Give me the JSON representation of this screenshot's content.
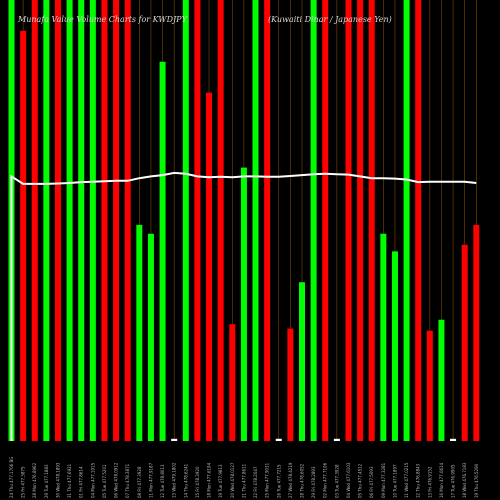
{
  "chart_data": {
    "type": "bar",
    "title": "Munafa Value Volume Charts for KWDJPY",
    "subtitle": "(Kuwaiti Dinar / Japanese Yen)",
    "ylim": [
      0,
      100
    ],
    "colors": {
      "up": "#00ff00",
      "down": "#ff0000",
      "line": "#ffffff",
      "grid": "#7a4a00",
      "background": "#000000",
      "flat": "#ffffff"
    },
    "categories": [
      "24 Thu 477.1706 BG",
      "25 Fri 477.3875",
      "28 Mon 476.8962",
      "29 Tue 477.1883",
      "30 Wed 478.1893",
      "31 Thu 477.6921",
      "01 Fri 477.8614",
      "04 Mon 477.1915",
      "05 Tue 477.5201",
      "06 Wed 478.0912",
      "07 Thu 478.3871",
      "08 Fri 477.3928",
      "11 Mon 477.9187",
      "12 Tue 478.8013",
      "13 Wed 479.1802",
      "14 Thu 478.6241",
      "15 Fri 478.3920",
      "18 Mon 477.6194",
      "19 Tue 477.9813",
      "20 Wed 478.0127",
      "21 Thu 477.8611",
      "22 Fri 478.2047",
      "25 Mon 477.9031",
      "26 Tue 477.7215",
      "27 Wed 478.4219",
      "28 Thu 478.6052",
      "29 Fri 478.2893",
      "02 Mon 477.7106",
      "03 Tue 477.3928",
      "04 Wed 477.6103",
      "05 Thu 477.4512",
      "06 Fri 477.5093",
      "09 Mon 477.3281",
      "10 Tue 477.1897",
      "11 Wed 477.0215",
      "12 Thu 476.8843",
      "13 Fri 476.9152",
      "16 Mon 477.0614",
      "17 Tue 476.9905",
      "18 Wed 476.7183",
      "19 Thu 476.5290"
    ],
    "values": [
      100,
      93,
      100,
      100,
      100,
      100,
      100,
      100,
      100,
      100,
      100,
      49,
      47,
      86,
      0.5,
      100,
      100,
      79,
      100,
      26.5,
      62,
      100,
      100,
      0.5,
      25.5,
      36,
      100,
      100,
      0.5,
      100,
      100,
      100,
      47,
      43,
      100,
      100,
      25,
      27.5,
      0.5,
      44.5,
      49
    ],
    "directions": [
      "up",
      "down",
      "down",
      "up",
      "down",
      "up",
      "up",
      "up",
      "down",
      "down",
      "down",
      "up",
      "up",
      "up",
      "flat",
      "up",
      "down",
      "down",
      "down",
      "down",
      "up",
      "up",
      "down",
      "flat",
      "down",
      "up",
      "up",
      "down",
      "flat",
      "down",
      "down",
      "down",
      "up",
      "up",
      "up",
      "down",
      "down",
      "up",
      "flat",
      "down",
      "down"
    ],
    "price_line": [
      60,
      58.3,
      58.3,
      58.3,
      58.4,
      58.5,
      58.7,
      58.8,
      58.9,
      59.0,
      59.0,
      59.6,
      60.0,
      60.3,
      60.8,
      60.6,
      60.0,
      59.8,
      59.9,
      59.8,
      60.0,
      60.0,
      59.9,
      59.9,
      60.1,
      60.3,
      60.5,
      60.6,
      60.5,
      60.4,
      60.0,
      59.6,
      59.6,
      59.5,
      59.3,
      58.7,
      58.8,
      58.8,
      58.8,
      58.8,
      58.5
    ]
  }
}
